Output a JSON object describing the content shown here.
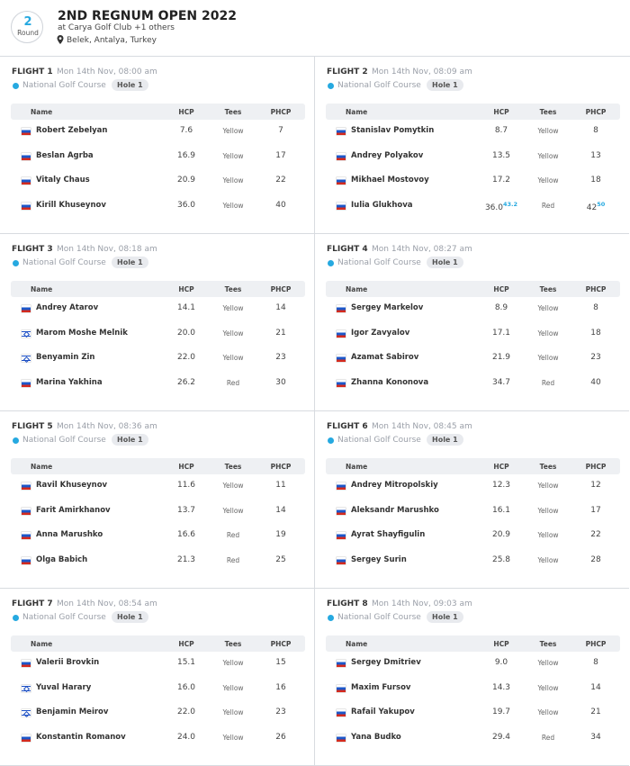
{
  "header": {
    "round_number": "2",
    "round_label": "Round",
    "title": "2ND REGNUM OPEN 2022",
    "subtitle": "at Carya Golf Club +1 others",
    "location": "Belek, Antalya, Turkey"
  },
  "columns": [
    "Name",
    "HCP",
    "Tees",
    "PHCP"
  ],
  "flights": [
    {
      "title": "FLIGHT 1",
      "time": "Mon 14th Nov, 08:00 am",
      "course": "National Golf Course",
      "hole": "Hole 1",
      "players": [
        {
          "name": "Robert Zebelyan",
          "flag": "ru",
          "hcp": "7.6",
          "tees": "Yellow",
          "phcp": "7"
        },
        {
          "name": "Beslan Agrba",
          "flag": "ru",
          "hcp": "16.9",
          "tees": "Yellow",
          "phcp": "17"
        },
        {
          "name": "Vitaly Chaus",
          "flag": "ru",
          "hcp": "20.9",
          "tees": "Yellow",
          "phcp": "22"
        },
        {
          "name": "Kirill Khuseynov",
          "flag": "ru",
          "hcp": "36.0",
          "tees": "Yellow",
          "phcp": "40"
        }
      ]
    },
    {
      "title": "FLIGHT 2",
      "time": "Mon 14th Nov, 08:09 am",
      "course": "National Golf Course",
      "hole": "Hole 1",
      "players": [
        {
          "name": "Stanislav Pomytkin",
          "flag": "ru",
          "hcp": "8.7",
          "tees": "Yellow",
          "phcp": "8"
        },
        {
          "name": "Andrey Polyakov",
          "flag": "ru",
          "hcp": "13.5",
          "tees": "Yellow",
          "phcp": "13"
        },
        {
          "name": "Mikhael Mostovoy",
          "flag": "ru",
          "hcp": "17.2",
          "tees": "Yellow",
          "phcp": "18"
        },
        {
          "name": "Iulia Glukhova",
          "flag": "ru",
          "hcp": "36.0",
          "hcp_sup": "43.2",
          "tees": "Red",
          "phcp": "42",
          "phcp_sup": "50"
        }
      ]
    },
    {
      "title": "FLIGHT 3",
      "time": "Mon 14th Nov, 08:18 am",
      "course": "National Golf Course",
      "hole": "Hole 1",
      "players": [
        {
          "name": "Andrey Atarov",
          "flag": "ru",
          "hcp": "14.1",
          "tees": "Yellow",
          "phcp": "14"
        },
        {
          "name": "Marom Moshe Melnik",
          "flag": "il",
          "hcp": "20.0",
          "tees": "Yellow",
          "phcp": "21"
        },
        {
          "name": "Benyamin Zin",
          "flag": "il",
          "hcp": "22.0",
          "tees": "Yellow",
          "phcp": "23"
        },
        {
          "name": "Marina Yakhina",
          "flag": "ru",
          "hcp": "26.2",
          "tees": "Red",
          "phcp": "30"
        }
      ]
    },
    {
      "title": "FLIGHT 4",
      "time": "Mon 14th Nov, 08:27 am",
      "course": "National Golf Course",
      "hole": "Hole 1",
      "players": [
        {
          "name": "Sergey Markelov",
          "flag": "ru",
          "hcp": "8.9",
          "tees": "Yellow",
          "phcp": "8"
        },
        {
          "name": "Igor Zavyalov",
          "flag": "ru",
          "hcp": "17.1",
          "tees": "Yellow",
          "phcp": "18"
        },
        {
          "name": "Azamat Sabirov",
          "flag": "ru",
          "hcp": "21.9",
          "tees": "Yellow",
          "phcp": "23"
        },
        {
          "name": "Zhanna Kononova",
          "flag": "ru",
          "hcp": "34.7",
          "tees": "Red",
          "phcp": "40"
        }
      ]
    },
    {
      "title": "FLIGHT 5",
      "time": "Mon 14th Nov, 08:36 am",
      "course": "National Golf Course",
      "hole": "Hole 1",
      "players": [
        {
          "name": "Ravil Khuseynov",
          "flag": "ru",
          "hcp": "11.6",
          "tees": "Yellow",
          "phcp": "11"
        },
        {
          "name": "Farit Amirkhanov",
          "flag": "ru",
          "hcp": "13.7",
          "tees": "Yellow",
          "phcp": "14"
        },
        {
          "name": "Anna Marushko",
          "flag": "ru",
          "hcp": "16.6",
          "tees": "Red",
          "phcp": "19"
        },
        {
          "name": "Olga Babich",
          "flag": "ru",
          "hcp": "21.3",
          "tees": "Red",
          "phcp": "25"
        }
      ]
    },
    {
      "title": "FLIGHT 6",
      "time": "Mon 14th Nov, 08:45 am",
      "course": "National Golf Course",
      "hole": "Hole 1",
      "players": [
        {
          "name": "Andrey Mitropolskiy",
          "flag": "ru",
          "hcp": "12.3",
          "tees": "Yellow",
          "phcp": "12"
        },
        {
          "name": "Aleksandr Marushko",
          "flag": "ru",
          "hcp": "16.1",
          "tees": "Yellow",
          "phcp": "17"
        },
        {
          "name": "Ayrat Shayfigulin",
          "flag": "ru",
          "hcp": "20.9",
          "tees": "Yellow",
          "phcp": "22"
        },
        {
          "name": "Sergey Surin",
          "flag": "ru",
          "hcp": "25.8",
          "tees": "Yellow",
          "phcp": "28"
        }
      ]
    },
    {
      "title": "FLIGHT 7",
      "time": "Mon 14th Nov, 08:54 am",
      "course": "National Golf Course",
      "hole": "Hole 1",
      "players": [
        {
          "name": "Valerii Brovkin",
          "flag": "ru",
          "hcp": "15.1",
          "tees": "Yellow",
          "phcp": "15"
        },
        {
          "name": "Yuval Harary",
          "flag": "il",
          "hcp": "16.0",
          "tees": "Yellow",
          "phcp": "16"
        },
        {
          "name": "Benjamin Meirov",
          "flag": "il",
          "hcp": "22.0",
          "tees": "Yellow",
          "phcp": "23"
        },
        {
          "name": "Konstantin Romanov",
          "flag": "ru",
          "hcp": "24.0",
          "tees": "Yellow",
          "phcp": "26"
        }
      ]
    },
    {
      "title": "FLIGHT 8",
      "time": "Mon 14th Nov, 09:03 am",
      "course": "National Golf Course",
      "hole": "Hole 1",
      "players": [
        {
          "name": "Sergey Dmitriev",
          "flag": "ru",
          "hcp": "9.0",
          "tees": "Yellow",
          "phcp": "8"
        },
        {
          "name": "Maxim Fursov",
          "flag": "ru",
          "hcp": "14.3",
          "tees": "Yellow",
          "phcp": "14"
        },
        {
          "name": "Rafail Yakupov",
          "flag": "ru",
          "hcp": "19.7",
          "tees": "Yellow",
          "phcp": "21"
        },
        {
          "name": "Yana Budko",
          "flag": "ru",
          "hcp": "29.4",
          "tees": "Red",
          "phcp": "34"
        }
      ]
    }
  ]
}
